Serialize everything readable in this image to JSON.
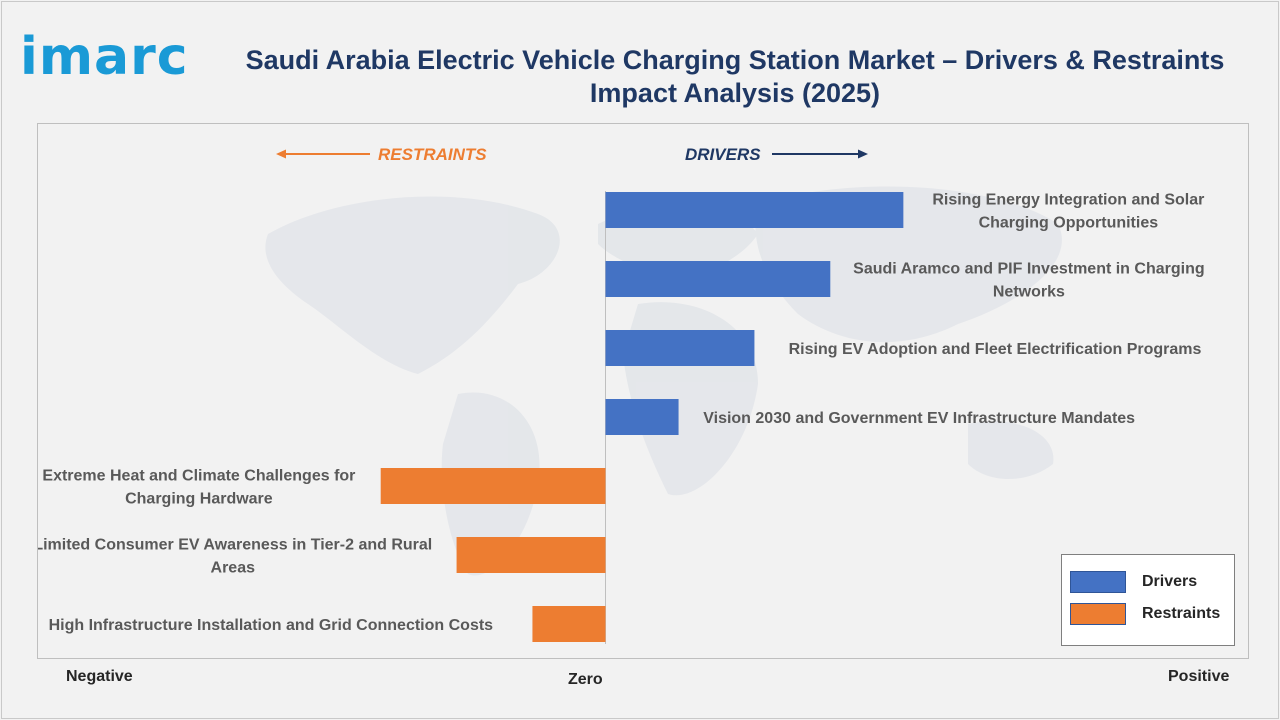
{
  "logo": {
    "text": "imarc"
  },
  "title": "Saudi Arabia Electric Vehicle Charging Station Market – Drivers & Restraints Impact Analysis (2025)",
  "direction_labels": {
    "restraints": "RESTRAINTS",
    "drivers": "DRIVERS"
  },
  "axis": {
    "negative": "Negative",
    "zero": "Zero",
    "positive": "Positive"
  },
  "legend": {
    "drivers": "Drivers",
    "restraints": "Restraints"
  },
  "colors": {
    "drivers": "#4472c4",
    "restraints": "#ed7d31",
    "title": "#1f3864",
    "logo": "#1a9ad6"
  },
  "chart_data": {
    "type": "bar",
    "orientation": "horizontal",
    "xlim": [
      -1,
      1
    ],
    "categories": [
      "Rising Energy Integration and Solar Charging Opportunities",
      "Saudi Aramco and PIF Investment in Charging Networks",
      "Rising EV Adoption and Fleet Electrification Programs",
      "Vision 2030 and Government EV Infrastructure Mandates",
      "Extreme Heat and Climate Challenges for Charging Hardware",
      "Limited Consumer EV Awareness in Tier-2 and Rural Areas",
      "High Infrastructure Installation and Grid Connection Costs"
    ],
    "label_lines": [
      [
        "Rising Energy Integration and Solar",
        "Charging Opportunities"
      ],
      [
        "Saudi Aramco and PIF Investment in Charging",
        "Networks"
      ],
      [
        "Rising EV Adoption and Fleet Electrification Programs"
      ],
      [
        "Vision 2030 and Government EV Infrastructure Mandates"
      ],
      [
        "Extreme Heat and Climate Challenges for",
        "Charging Hardware"
      ],
      [
        "Limited Consumer EV Awareness in Tier-2 and Rural",
        "Areas"
      ],
      [
        "High Infrastructure Installation and Grid Connection Costs"
      ]
    ],
    "series": [
      {
        "name": "Drivers",
        "values": [
          0.53,
          0.4,
          0.265,
          0.13,
          null,
          null,
          null
        ]
      },
      {
        "name": "Restraints",
        "values": [
          null,
          null,
          null,
          null,
          -0.4,
          -0.265,
          -0.13
        ]
      }
    ],
    "legend_position": "bottom-right",
    "grid": false
  }
}
